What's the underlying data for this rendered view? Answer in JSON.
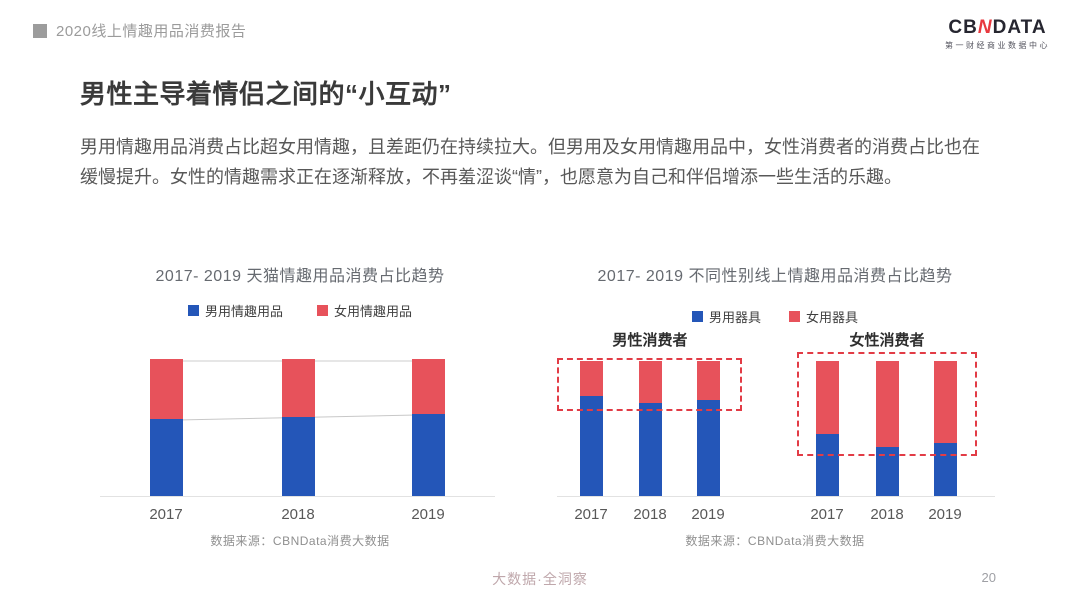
{
  "header": {
    "report_title": "2020线上情趣用品消费报告",
    "logo": {
      "text_left": "CB",
      "text_mark": "N",
      "text_right": "DATA",
      "tagline": "第一财经商业数据中心"
    }
  },
  "page": {
    "title": "男性主导着情侣之间的“小互动”",
    "body": "男用情趣用品消费占比超女用情趣，且差距仍在持续拉大。但男用及女用情趣用品中，女性消费者的消费占比也在缓慢提升。女性的情趣需求正在逐渐释放，不再羞涩谈“情”，也愿意为自己和伴侣增添一些生活的乐趣。"
  },
  "colors": {
    "male_blue": "#2456b8",
    "female_red": "#e7525b",
    "highlight_box_red": "#e23c46"
  },
  "chart_data": [
    {
      "type": "bar",
      "stacked": true,
      "title": "2017- 2019 天猫情趣用品消费占比趋势",
      "categories": [
        "2017",
        "2018",
        "2019"
      ],
      "series": [
        {
          "name": "男用情趣用品",
          "color": "#2456b8",
          "values": [
            56,
            58,
            60
          ]
        },
        {
          "name": "女用情趣用品",
          "color": "#e7525b",
          "values": [
            44,
            42,
            40
          ]
        }
      ],
      "unit": "percent of total (estimated, no axis labels shown)",
      "ylim": [
        0,
        100
      ],
      "legend_position": "top",
      "grid": false,
      "trend_line": "thin gray line traces the boundary between series and the bar tops",
      "source": "数据来源：CBNData消费大数据"
    },
    {
      "type": "bar",
      "stacked": true,
      "title": "2017- 2019 不同性别线上情趣用品消费占比趋势",
      "legend": [
        "男用器具",
        "女用器具"
      ],
      "series_colors": [
        "#2456b8",
        "#e7525b"
      ],
      "groups": [
        {
          "label": "男性消费者",
          "categories": [
            "2017",
            "2018",
            "2019"
          ],
          "series": [
            {
              "name": "男用器具",
              "values": [
                74,
                69,
                71
              ]
            },
            {
              "name": "女用器具",
              "values": [
                26,
                31,
                29
              ]
            }
          ],
          "highlight": "red dashed box around 女用器具 segments"
        },
        {
          "label": "女性消费者",
          "categories": [
            "2017",
            "2018",
            "2019"
          ],
          "series": [
            {
              "name": "男用器具",
              "values": [
                46,
                36,
                39
              ]
            },
            {
              "name": "女用器具",
              "values": [
                54,
                64,
                61
              ]
            }
          ],
          "highlight": "red dashed box around 女用器具 segments"
        }
      ],
      "unit": "percent of total (estimated, no axis labels shown)",
      "ylim": [
        0,
        100
      ],
      "grid": false,
      "source": "数据来源：CBNData消费大数据"
    }
  ],
  "footer": {
    "slogan": "大数据·全洞察",
    "page_number": "20"
  }
}
